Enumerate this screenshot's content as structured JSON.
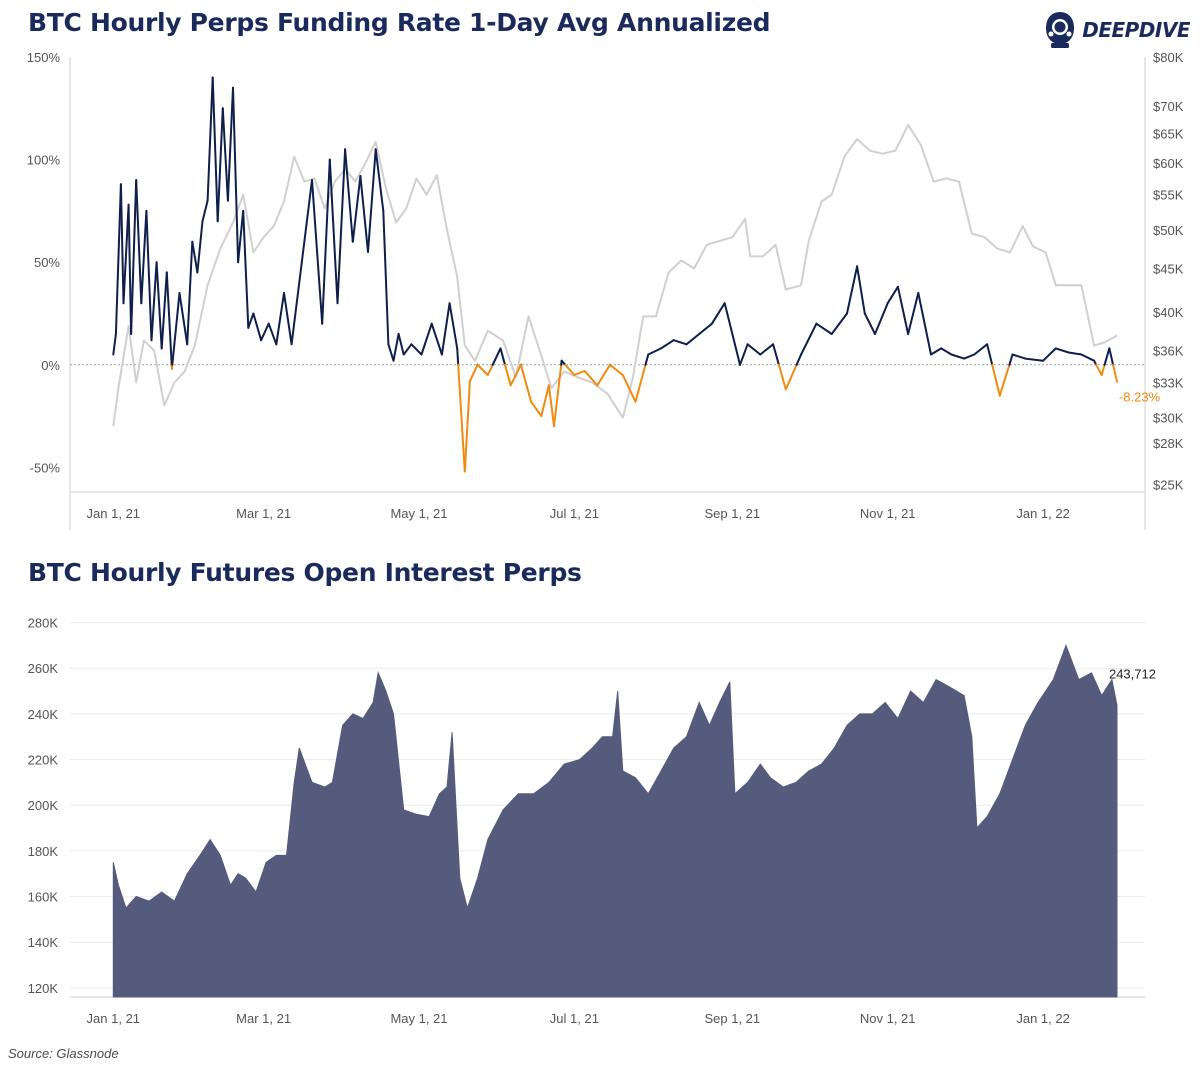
{
  "colors": {
    "title": "#1b2a5c",
    "funding_positive": "#0f1f4b",
    "funding_negative": "#f08a10",
    "price": "#d0d0d0",
    "open_interest_fill": "#545b7c",
    "grid": "#ececec",
    "axis": "#cfcfcf",
    "zero_line": "#a0a0a0"
  },
  "logo": {
    "text": "DEEPDIVE",
    "icon": "diver-helmet-icon"
  },
  "source": "Source: Glassnode",
  "chart_data": [
    {
      "type": "line",
      "title": "BTC Hourly Perps Funding Rate 1-Day Avg Annualized",
      "x_ticks": [
        "Jan 1, 21",
        "Mar 1, 21",
        "May 1, 21",
        "Jul 1, 21",
        "Sep 1, 21",
        "Nov 1, 21",
        "Jan 1, 22"
      ],
      "x_tick_values": [
        "2021-01-01",
        "2021-03-01",
        "2021-05-01",
        "2021-07-01",
        "2021-09-01",
        "2021-11-01",
        "2022-01-01"
      ],
      "xlim": [
        "2020-12-15",
        "2022-02-10"
      ],
      "y_left_ticks": [
        "-50%",
        "0%",
        "50%",
        "100%",
        "150%"
      ],
      "y_left_tick_values": [
        -50,
        0,
        50,
        100,
        150
      ],
      "ylim_left": [
        -62,
        150
      ],
      "y_right_ticks": [
        "$25K",
        "$28K",
        "$30K",
        "$33K",
        "$36K",
        "$40K",
        "$45K",
        "$50K",
        "$55K",
        "$60K",
        "$65K",
        "$70K",
        "$80K"
      ],
      "y_right_tick_values": [
        25000,
        28000,
        30000,
        33000,
        36000,
        40000,
        45000,
        50000,
        55000,
        60000,
        65000,
        70000,
        80000
      ],
      "y_right_scale": "log",
      "ylim_right": [
        24500,
        80000
      ],
      "end_label": "-8.23%",
      "series": [
        {
          "axis": "left",
          "color_rule": "orange below zero",
          "x": [
            "2021-01-01",
            "2021-01-02",
            "2021-01-04",
            "2021-01-05",
            "2021-01-07",
            "2021-01-08",
            "2021-01-10",
            "2021-01-12",
            "2021-01-14",
            "2021-01-16",
            "2021-01-18",
            "2021-01-20",
            "2021-01-22",
            "2021-01-24",
            "2021-01-27",
            "2021-01-30",
            "2021-02-01",
            "2021-02-03",
            "2021-02-05",
            "2021-02-07",
            "2021-02-09",
            "2021-02-11",
            "2021-02-13",
            "2021-02-15",
            "2021-02-17",
            "2021-02-19",
            "2021-02-21",
            "2021-02-23",
            "2021-02-25",
            "2021-02-28",
            "2021-03-03",
            "2021-03-06",
            "2021-03-09",
            "2021-03-12",
            "2021-03-16",
            "2021-03-20",
            "2021-03-24",
            "2021-03-27",
            "2021-03-30",
            "2021-04-02",
            "2021-04-05",
            "2021-04-08",
            "2021-04-11",
            "2021-04-14",
            "2021-04-17",
            "2021-04-19",
            "2021-04-21",
            "2021-04-23",
            "2021-04-25",
            "2021-04-28",
            "2021-05-02",
            "2021-05-06",
            "2021-05-10",
            "2021-05-13",
            "2021-05-16",
            "2021-05-19",
            "2021-05-21",
            "2021-05-24",
            "2021-05-28",
            "2021-06-02",
            "2021-06-06",
            "2021-06-10",
            "2021-06-14",
            "2021-06-18",
            "2021-06-21",
            "2021-06-23",
            "2021-06-26",
            "2021-07-01",
            "2021-07-05",
            "2021-07-10",
            "2021-07-15",
            "2021-07-20",
            "2021-07-25",
            "2021-07-30",
            "2021-08-04",
            "2021-08-09",
            "2021-08-14",
            "2021-08-19",
            "2021-08-24",
            "2021-08-29",
            "2021-09-04",
            "2021-09-07",
            "2021-09-12",
            "2021-09-17",
            "2021-09-22",
            "2021-09-28",
            "2021-10-04",
            "2021-10-10",
            "2021-10-16",
            "2021-10-20",
            "2021-10-23",
            "2021-10-27",
            "2021-11-01",
            "2021-11-05",
            "2021-11-09",
            "2021-11-13",
            "2021-11-18",
            "2021-11-22",
            "2021-11-26",
            "2021-12-01",
            "2021-12-05",
            "2021-12-10",
            "2021-12-15",
            "2021-12-20",
            "2021-12-25",
            "2022-01-01",
            "2022-01-06",
            "2022-01-11",
            "2022-01-16",
            "2022-01-21",
            "2022-01-24",
            "2022-01-27",
            "2022-01-30"
          ],
          "values": [
            5,
            15,
            88,
            30,
            78,
            15,
            90,
            30,
            75,
            12,
            50,
            8,
            45,
            -2,
            35,
            10,
            60,
            45,
            70,
            80,
            140,
            70,
            125,
            80,
            135,
            50,
            75,
            18,
            25,
            12,
            20,
            10,
            35,
            10,
            50,
            90,
            20,
            100,
            30,
            105,
            60,
            92,
            55,
            105,
            75,
            10,
            2,
            15,
            5,
            10,
            5,
            20,
            5,
            30,
            8,
            -52,
            -8,
            0,
            -5,
            8,
            -10,
            0,
            -18,
            -25,
            -10,
            -30,
            2,
            -5,
            -3,
            -10,
            0,
            -5,
            -18,
            5,
            8,
            12,
            10,
            15,
            20,
            30,
            0,
            10,
            5,
            10,
            -12,
            5,
            20,
            15,
            25,
            48,
            25,
            15,
            30,
            38,
            15,
            35,
            5,
            8,
            5,
            3,
            5,
            10,
            -15,
            5,
            3,
            2,
            8,
            6,
            5,
            2,
            -5,
            8,
            -8.23
          ]
        },
        {
          "axis": "right",
          "x": [
            "2021-01-01",
            "2021-01-03",
            "2021-01-07",
            "2021-01-10",
            "2021-01-13",
            "2021-01-17",
            "2021-01-21",
            "2021-01-25",
            "2021-01-29",
            "2021-02-02",
            "2021-02-07",
            "2021-02-12",
            "2021-02-17",
            "2021-02-21",
            "2021-02-25",
            "2021-03-01",
            "2021-03-05",
            "2021-03-09",
            "2021-03-13",
            "2021-03-17",
            "2021-03-21",
            "2021-03-25",
            "2021-03-29",
            "2021-04-02",
            "2021-04-06",
            "2021-04-10",
            "2021-04-14",
            "2021-04-18",
            "2021-04-22",
            "2021-04-26",
            "2021-04-30",
            "2021-05-04",
            "2021-05-08",
            "2021-05-12",
            "2021-05-16",
            "2021-05-19",
            "2021-05-23",
            "2021-05-28",
            "2021-06-03",
            "2021-06-08",
            "2021-06-13",
            "2021-06-18",
            "2021-06-22",
            "2021-06-27",
            "2021-07-02",
            "2021-07-08",
            "2021-07-14",
            "2021-07-20",
            "2021-07-24",
            "2021-07-28",
            "2021-08-02",
            "2021-08-07",
            "2021-08-12",
            "2021-08-17",
            "2021-08-22",
            "2021-08-27",
            "2021-09-01",
            "2021-09-06",
            "2021-09-08",
            "2021-09-13",
            "2021-09-18",
            "2021-09-22",
            "2021-09-28",
            "2021-10-01",
            "2021-10-06",
            "2021-10-10",
            "2021-10-15",
            "2021-10-20",
            "2021-10-25",
            "2021-10-30",
            "2021-11-04",
            "2021-11-09",
            "2021-11-14",
            "2021-11-19",
            "2021-11-24",
            "2021-11-29",
            "2021-12-04",
            "2021-12-09",
            "2021-12-14",
            "2021-12-19",
            "2021-12-24",
            "2021-12-28",
            "2022-01-02",
            "2022-01-06",
            "2022-01-11",
            "2022-01-16",
            "2022-01-21",
            "2022-01-25",
            "2022-01-30"
          ],
          "values": [
            29300,
            32500,
            38500,
            33000,
            37000,
            36000,
            31000,
            33000,
            34000,
            36500,
            43000,
            47500,
            51000,
            55000,
            47000,
            49000,
            50500,
            54000,
            61000,
            57000,
            57500,
            53000,
            57000,
            59000,
            57000,
            60000,
            63500,
            56000,
            51000,
            53000,
            57500,
            55000,
            58000,
            50000,
            44000,
            36500,
            35000,
            38000,
            37000,
            33500,
            39500,
            35500,
            32500,
            34000,
            33500,
            33000,
            32000,
            30000,
            33500,
            39500,
            39500,
            44500,
            46000,
            45000,
            48000,
            48500,
            49000,
            51500,
            46500,
            46500,
            48000,
            42500,
            43000,
            48500,
            54000,
            55000,
            61000,
            64000,
            62000,
            61500,
            62000,
            66500,
            63000,
            57000,
            57500,
            57000,
            49500,
            49000,
            47500,
            47000,
            50500,
            47800,
            47000,
            43000,
            43000,
            43000,
            36500,
            36800,
            37500
          ]
        }
      ]
    },
    {
      "type": "area",
      "title": "BTC Hourly Futures Open Interest Perps",
      "x_ticks": [
        "Jan 1, 21",
        "Mar 1, 21",
        "May 1, 21",
        "Jul 1, 21",
        "Sep 1, 21",
        "Nov 1, 21",
        "Jan 1, 22"
      ],
      "x_tick_values": [
        "2021-01-01",
        "2021-03-01",
        "2021-05-01",
        "2021-07-01",
        "2021-09-01",
        "2021-11-01",
        "2022-01-01"
      ],
      "xlim": [
        "2020-12-15",
        "2022-02-10"
      ],
      "y_ticks": [
        "120K",
        "140K",
        "160K",
        "180K",
        "200K",
        "220K",
        "240K",
        "260K",
        "280K"
      ],
      "y_tick_values": [
        120000,
        140000,
        160000,
        180000,
        200000,
        220000,
        240000,
        260000,
        280000
      ],
      "ylim": [
        116000,
        282000
      ],
      "end_label": "243,712",
      "series": [
        {
          "x": [
            "2021-01-01",
            "2021-01-03",
            "2021-01-06",
            "2021-01-10",
            "2021-01-15",
            "2021-01-20",
            "2021-01-25",
            "2021-01-30",
            "2021-02-04",
            "2021-02-08",
            "2021-02-12",
            "2021-02-16",
            "2021-02-19",
            "2021-02-22",
            "2021-02-26",
            "2021-03-02",
            "2021-03-06",
            "2021-03-10",
            "2021-03-13",
            "2021-03-15",
            "2021-03-20",
            "2021-03-25",
            "2021-03-28",
            "2021-04-01",
            "2021-04-05",
            "2021-04-09",
            "2021-04-13",
            "2021-04-15",
            "2021-04-18",
            "2021-04-21",
            "2021-04-25",
            "2021-04-30",
            "2021-05-05",
            "2021-05-09",
            "2021-05-12",
            "2021-05-14",
            "2021-05-17",
            "2021-05-20",
            "2021-05-24",
            "2021-05-28",
            "2021-06-03",
            "2021-06-09",
            "2021-06-15",
            "2021-06-21",
            "2021-06-27",
            "2021-07-03",
            "2021-07-08",
            "2021-07-12",
            "2021-07-16",
            "2021-07-18",
            "2021-07-20",
            "2021-07-25",
            "2021-07-30",
            "2021-08-04",
            "2021-08-09",
            "2021-08-14",
            "2021-08-19",
            "2021-08-23",
            "2021-08-27",
            "2021-08-31",
            "2021-09-02",
            "2021-09-07",
            "2021-09-12",
            "2021-09-16",
            "2021-09-21",
            "2021-09-26",
            "2021-10-01",
            "2021-10-06",
            "2021-10-11",
            "2021-10-16",
            "2021-10-21",
            "2021-10-26",
            "2021-10-31",
            "2021-11-05",
            "2021-11-10",
            "2021-11-15",
            "2021-11-20",
            "2021-11-25",
            "2021-12-01",
            "2021-12-04",
            "2021-12-06",
            "2021-12-10",
            "2021-12-15",
            "2021-12-20",
            "2021-12-25",
            "2021-12-30",
            "2022-01-05",
            "2022-01-10",
            "2022-01-15",
            "2022-01-20",
            "2022-01-24",
            "2022-01-28",
            "2022-01-30"
          ],
          "values": [
            175000,
            165000,
            155000,
            160000,
            158000,
            162000,
            158000,
            170000,
            178000,
            185000,
            178000,
            165000,
            170000,
            168000,
            162000,
            175000,
            178000,
            178000,
            210000,
            225000,
            210000,
            208000,
            210000,
            235000,
            240000,
            238000,
            245000,
            258000,
            250000,
            240000,
            198000,
            196000,
            195000,
            205000,
            208000,
            232000,
            168000,
            155000,
            168000,
            185000,
            198000,
            205000,
            205000,
            210000,
            218000,
            220000,
            225000,
            230000,
            230000,
            250000,
            215000,
            212000,
            205000,
            215000,
            225000,
            230000,
            245000,
            235000,
            245000,
            254000,
            205000,
            210000,
            218000,
            212000,
            208000,
            210000,
            215000,
            218000,
            225000,
            235000,
            240000,
            240000,
            245000,
            238000,
            250000,
            245000,
            255000,
            252000,
            248000,
            230000,
            190000,
            195000,
            205000,
            220000,
            235000,
            245000,
            255000,
            270000,
            255000,
            258000,
            248000,
            255000,
            243712
          ]
        }
      ]
    }
  ]
}
